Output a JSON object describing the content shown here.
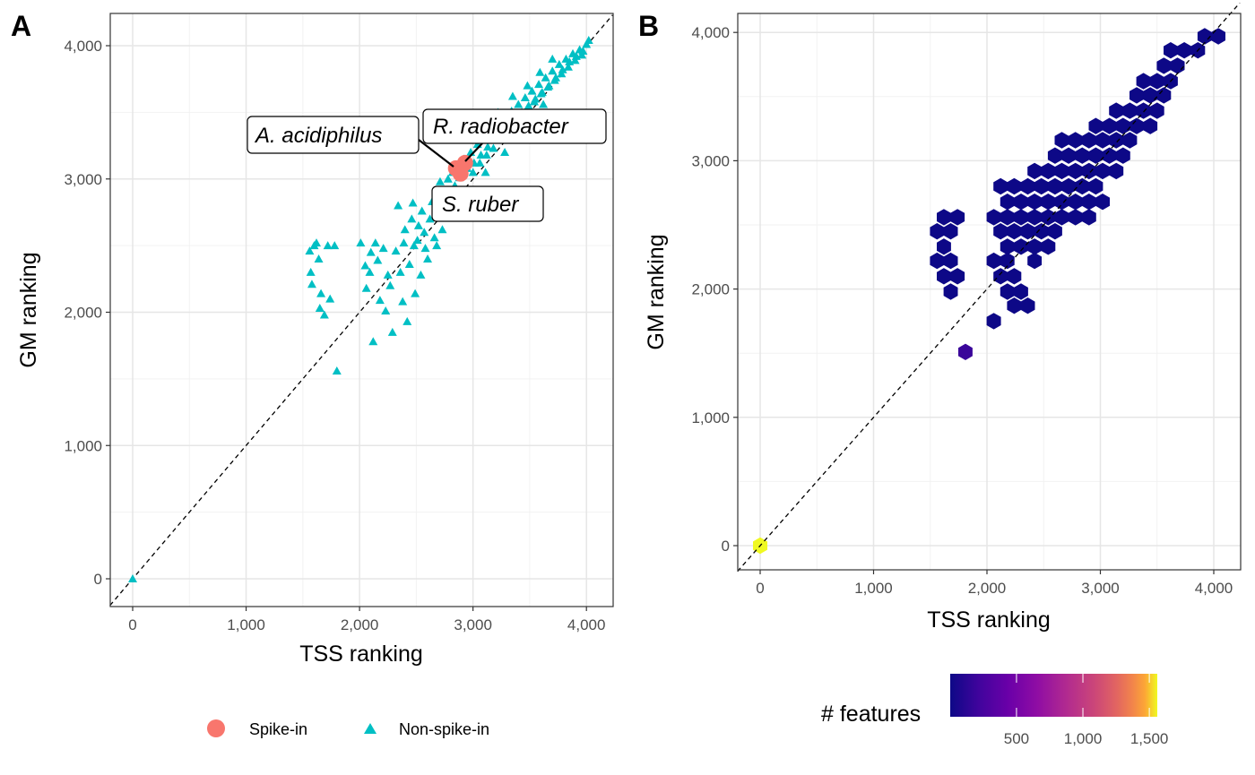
{
  "panel_a": {
    "tag": "A",
    "xlabel": "TSS ranking",
    "ylabel": "GM ranking",
    "xticks": [
      "0",
      "1,000",
      "2,000",
      "3,000",
      "4,000"
    ],
    "yticks": [
      "0",
      "1,000",
      "2,000",
      "3,000",
      "4,000"
    ],
    "labels": {
      "acidiphilus": "A. acidiphilus",
      "radiobacter": "R. radiobacter",
      "ruber": "S. ruber"
    },
    "legend": {
      "spike": "Spike-in",
      "nonspike": "Non-spike-in"
    }
  },
  "panel_b": {
    "tag": "B",
    "xlabel": "TSS ranking",
    "ylabel": "GM ranking",
    "xticks": [
      "0",
      "1,000",
      "2,000",
      "3,000",
      "4,000"
    ],
    "yticks": [
      "0",
      "1,000",
      "2,000",
      "3,000",
      "4,000"
    ],
    "legend_title": "# features",
    "legend_ticks": [
      "500",
      "1,000",
      "1,500"
    ]
  },
  "colors": {
    "spike": "#F8766D",
    "nonspike": "#00BFC4",
    "hex_low": "#0D0887",
    "hex_high": "#F0F921"
  },
  "chart_data": [
    {
      "type": "scatter",
      "xlabel": "TSS ranking",
      "ylabel": "GM ranking",
      "xlim": [
        -200,
        4230
      ],
      "ylim": [
        -200,
        4240
      ],
      "reference_line": "y = x (dashed)",
      "legend_position": "bottom",
      "series": [
        {
          "name": "Spike-in",
          "points": [
            [
              2850,
              3080
            ],
            [
              2890,
              3040
            ],
            [
              2930,
              3120
            ]
          ]
        },
        {
          "name": "Non-spike-in",
          "points": [
            [
              0,
              0
            ],
            [
              1560,
              2460
            ],
            [
              1570,
              2300
            ],
            [
              1580,
              2210
            ],
            [
              1600,
              2500
            ],
            [
              1620,
              2520
            ],
            [
              1640,
              2400
            ],
            [
              1660,
              2140
            ],
            [
              1690,
              1980
            ],
            [
              1720,
              2500
            ],
            [
              1740,
              2100
            ],
            [
              1800,
              1560
            ],
            [
              1780,
              2500
            ],
            [
              1650,
              2030
            ],
            [
              2010,
              2520
            ],
            [
              2050,
              2350
            ],
            [
              2060,
              2180
            ],
            [
              2090,
              2300
            ],
            [
              2100,
              2450
            ],
            [
              2120,
              1780
            ],
            [
              2140,
              2520
            ],
            [
              2160,
              2390
            ],
            [
              2180,
              2090
            ],
            [
              2210,
              2480
            ],
            [
              2230,
              2010
            ],
            [
              2250,
              2280
            ],
            [
              2270,
              2200
            ],
            [
              2290,
              1850
            ],
            [
              2320,
              2460
            ],
            [
              2340,
              2800
            ],
            [
              2360,
              2300
            ],
            [
              2380,
              2080
            ],
            [
              2390,
              2520
            ],
            [
              2400,
              2620
            ],
            [
              2420,
              1930
            ],
            [
              2440,
              2360
            ],
            [
              2460,
              2700
            ],
            [
              2470,
              2820
            ],
            [
              2480,
              2500
            ],
            [
              2490,
              2140
            ],
            [
              2510,
              2540
            ],
            [
              2520,
              2650
            ],
            [
              2540,
              2280
            ],
            [
              2550,
              2760
            ],
            [
              2570,
              2600
            ],
            [
              2580,
              2480
            ],
            [
              2600,
              2400
            ],
            [
              2620,
              2700
            ],
            [
              2640,
              2830
            ],
            [
              2660,
              2560
            ],
            [
              2680,
              2500
            ],
            [
              2690,
              2900
            ],
            [
              2710,
              2980
            ],
            [
              2730,
              2620
            ],
            [
              2740,
              2740
            ],
            [
              2760,
              2860
            ],
            [
              2780,
              3000
            ],
            [
              2800,
              2900
            ],
            [
              2820,
              3050
            ],
            [
              2840,
              2950
            ],
            [
              2860,
              3100
            ],
            [
              2880,
              3010
            ],
            [
              2920,
              3150
            ],
            [
              2950,
              3080
            ],
            [
              2980,
              3200
            ],
            [
              3010,
              3120
            ],
            [
              3040,
              3260
            ],
            [
              3070,
              3180
            ],
            [
              3100,
              3310
            ],
            [
              3130,
              3240
            ],
            [
              3160,
              3360
            ],
            [
              3190,
              3300
            ],
            [
              3220,
              3410
            ],
            [
              3250,
              3350
            ],
            [
              3280,
              3460
            ],
            [
              3310,
              3400
            ],
            [
              3340,
              3510
            ],
            [
              3370,
              3450
            ],
            [
              3400,
              3560
            ],
            [
              3430,
              3500
            ],
            [
              3460,
              3610
            ],
            [
              3490,
              3550
            ],
            [
              3520,
              3660
            ],
            [
              3550,
              3600
            ],
            [
              3580,
              3710
            ],
            [
              3610,
              3650
            ],
            [
              3640,
              3760
            ],
            [
              3670,
              3700
            ],
            [
              3700,
              3810
            ],
            [
              3730,
              3760
            ],
            [
              3760,
              3860
            ],
            [
              3790,
              3820
            ],
            [
              3820,
              3900
            ],
            [
              3850,
              3880
            ],
            [
              3880,
              3940
            ],
            [
              3910,
              3920
            ],
            [
              3940,
              3970
            ],
            [
              3970,
              3960
            ],
            [
              4000,
              4010
            ],
            [
              4020,
              4040
            ],
            [
              3000,
              3050
            ],
            [
              3060,
              3120
            ],
            [
              3120,
              3180
            ],
            [
              3180,
              3230
            ],
            [
              3240,
              3300
            ],
            [
              3300,
              3350
            ],
            [
              3360,
              3420
            ],
            [
              3420,
              3470
            ],
            [
              3480,
              3530
            ],
            [
              3540,
              3580
            ],
            [
              3600,
              3640
            ],
            [
              3660,
              3690
            ],
            [
              3720,
              3740
            ],
            [
              3780,
              3790
            ],
            [
              3840,
              3840
            ],
            [
              3900,
              3890
            ],
            [
              3960,
              3930
            ],
            [
              2960,
              3320
            ],
            [
              3080,
              3420
            ],
            [
              3220,
              3500
            ],
            [
              3350,
              3620
            ],
            [
              3480,
              3700
            ],
            [
              3590,
              3800
            ],
            [
              3700,
              3900
            ],
            [
              3110,
              3050
            ],
            [
              3280,
              3200
            ],
            [
              3450,
              3390
            ],
            [
              3620,
              3560
            ]
          ]
        }
      ],
      "annotations": [
        {
          "text": "A. acidiphilus",
          "x": 2850,
          "y": 3080
        },
        {
          "text": "R. radiobacter",
          "x": 2930,
          "y": 3120
        },
        {
          "text": "S. ruber",
          "x": 2890,
          "y": 3040
        }
      ]
    },
    {
      "type": "hexbin",
      "xlabel": "TSS ranking",
      "ylabel": "GM ranking",
      "xlim": [
        -200,
        4230
      ],
      "ylim": [
        -200,
        4240
      ],
      "reference_line": "y = x (dashed)",
      "legend_title": "# features",
      "legend_position": "bottom",
      "color_scale": "plasma",
      "color_range": [
        1,
        1560
      ],
      "bins": [
        [
          0,
          0,
          1560
        ],
        [
          1810,
          1510,
          150
        ],
        [
          1620,
          2560,
          2
        ],
        [
          1740,
          2560,
          2
        ],
        [
          1560,
          2450,
          2
        ],
        [
          1680,
          2450,
          2
        ],
        [
          1620,
          2330,
          2
        ],
        [
          1560,
          2220,
          2
        ],
        [
          1680,
          2220,
          2
        ],
        [
          1620,
          2100,
          2
        ],
        [
          1740,
          2100,
          2
        ],
        [
          1680,
          1980,
          5
        ],
        [
          2060,
          2560,
          2
        ],
        [
          2180,
          2560,
          2
        ],
        [
          2300,
          2560,
          2
        ],
        [
          2420,
          2560,
          2
        ],
        [
          2540,
          2560,
          2
        ],
        [
          2660,
          2560,
          2
        ],
        [
          2780,
          2560,
          2
        ],
        [
          2900,
          2560,
          2
        ],
        [
          2120,
          2450,
          2
        ],
        [
          2240,
          2450,
          2
        ],
        [
          2360,
          2450,
          2
        ],
        [
          2480,
          2450,
          2
        ],
        [
          2600,
          2450,
          2
        ],
        [
          2180,
          2330,
          2
        ],
        [
          2300,
          2330,
          2
        ],
        [
          2420,
          2330,
          2
        ],
        [
          2540,
          2330,
          2
        ],
        [
          2060,
          2220,
          2
        ],
        [
          2180,
          2220,
          2
        ],
        [
          2420,
          2220,
          2
        ],
        [
          2120,
          2100,
          2
        ],
        [
          2240,
          2100,
          2
        ],
        [
          2180,
          1980,
          2
        ],
        [
          2300,
          1980,
          2
        ],
        [
          2240,
          1870,
          2
        ],
        [
          2360,
          1870,
          2
        ],
        [
          2060,
          1750,
          2
        ],
        [
          2120,
          2800,
          2
        ],
        [
          2240,
          2800,
          2
        ],
        [
          2360,
          2800,
          2
        ],
        [
          2480,
          2800,
          2
        ],
        [
          2600,
          2800,
          2
        ],
        [
          2720,
          2800,
          2
        ],
        [
          2840,
          2800,
          2
        ],
        [
          2960,
          2800,
          2
        ],
        [
          2180,
          2680,
          2
        ],
        [
          2300,
          2680,
          2
        ],
        [
          2420,
          2680,
          2
        ],
        [
          2540,
          2680,
          2
        ],
        [
          2660,
          2680,
          2
        ],
        [
          2780,
          2680,
          2
        ],
        [
          2900,
          2680,
          2
        ],
        [
          3020,
          2680,
          2
        ],
        [
          2420,
          2920,
          2
        ],
        [
          2540,
          2920,
          2
        ],
        [
          2660,
          2920,
          2
        ],
        [
          2780,
          2920,
          2
        ],
        [
          2900,
          2920,
          2
        ],
        [
          3020,
          2920,
          2
        ],
        [
          3140,
          2920,
          2
        ],
        [
          2600,
          3040,
          2
        ],
        [
          2720,
          3040,
          2
        ],
        [
          2840,
          3040,
          2
        ],
        [
          2960,
          3040,
          2
        ],
        [
          3080,
          3040,
          2
        ],
        [
          3200,
          3040,
          2
        ],
        [
          2660,
          3160,
          2
        ],
        [
          2780,
          3160,
          2
        ],
        [
          2900,
          3160,
          2
        ],
        [
          3020,
          3160,
          2
        ],
        [
          3140,
          3160,
          2
        ],
        [
          3260,
          3160,
          2
        ],
        [
          2960,
          3270,
          2
        ],
        [
          3080,
          3270,
          2
        ],
        [
          3200,
          3270,
          2
        ],
        [
          3320,
          3270,
          2
        ],
        [
          3440,
          3270,
          2
        ],
        [
          3140,
          3390,
          2
        ],
        [
          3260,
          3390,
          2
        ],
        [
          3380,
          3390,
          2
        ],
        [
          3500,
          3390,
          2
        ],
        [
          3320,
          3510,
          2
        ],
        [
          3440,
          3510,
          2
        ],
        [
          3560,
          3510,
          2
        ],
        [
          3380,
          3620,
          2
        ],
        [
          3500,
          3620,
          2
        ],
        [
          3620,
          3620,
          2
        ],
        [
          3560,
          3740,
          2
        ],
        [
          3680,
          3740,
          2
        ],
        [
          3620,
          3860,
          2
        ],
        [
          3740,
          3860,
          2
        ],
        [
          3860,
          3860,
          3
        ],
        [
          3920,
          3970,
          4
        ],
        [
          4040,
          3970,
          5
        ]
      ]
    }
  ]
}
